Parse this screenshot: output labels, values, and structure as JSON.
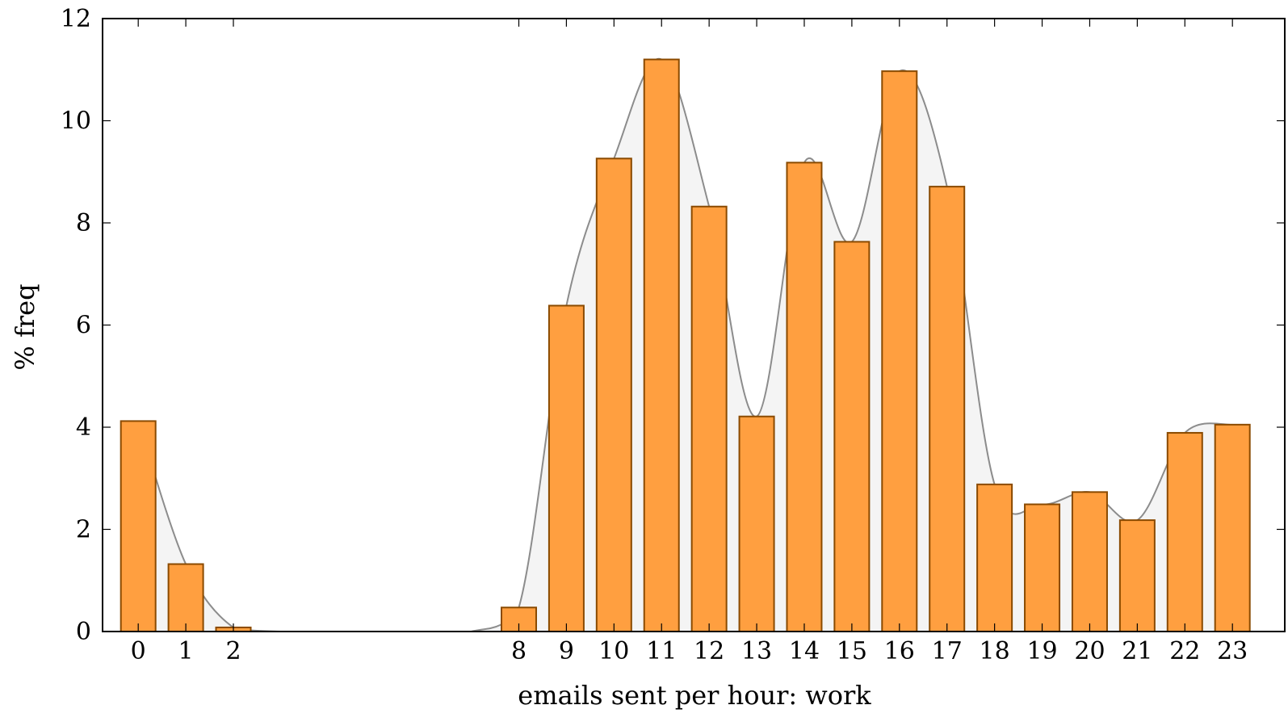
{
  "chart_data": {
    "type": "bar",
    "categories": [
      "0",
      "1",
      "2",
      "8",
      "9",
      "10",
      "11",
      "12",
      "13",
      "14",
      "15",
      "16",
      "17",
      "18",
      "19",
      "20",
      "21",
      "22",
      "23"
    ],
    "x": [
      0,
      1,
      2,
      8,
      9,
      10,
      11,
      12,
      13,
      14,
      15,
      16,
      17,
      18,
      19,
      20,
      21,
      22,
      23
    ],
    "values": [
      4.12,
      1.32,
      0.08,
      0.47,
      6.38,
      9.26,
      11.2,
      8.32,
      4.21,
      9.18,
      7.63,
      10.97,
      8.71,
      2.88,
      2.49,
      2.73,
      2.18,
      3.89,
      4.05
    ],
    "xlabel": "emails sent per hour: work",
    "ylabel": "% freq",
    "ylim": [
      0,
      12
    ],
    "yticks": [
      0,
      2,
      4,
      6,
      8,
      10,
      12
    ],
    "xticks": [
      0,
      1,
      2,
      8,
      9,
      10,
      11,
      12,
      13,
      14,
      15,
      16,
      17,
      18,
      19,
      20,
      21,
      22,
      23
    ],
    "grid": false,
    "smooth_curve": {
      "x": [
        0,
        1,
        2,
        3,
        4,
        5,
        6,
        7,
        8,
        9,
        10,
        11,
        12,
        13,
        14,
        15,
        16,
        17,
        18,
        19,
        20,
        21,
        22,
        23
      ],
      "y": [
        4.12,
        1.32,
        0.08,
        0,
        0,
        0,
        0,
        0,
        0.47,
        6.38,
        9.26,
        11.2,
        8.32,
        4.21,
        9.18,
        7.63,
        10.97,
        8.71,
        2.88,
        2.49,
        2.73,
        2.18,
        3.89,
        4.05
      ]
    },
    "colors": {
      "bar_fill": "#ff9f40",
      "bar_stroke": "#8a4a00",
      "curve_stroke": "#8c8c8c",
      "curve_fill": "#f4f4f4",
      "axis": "#000000"
    }
  }
}
